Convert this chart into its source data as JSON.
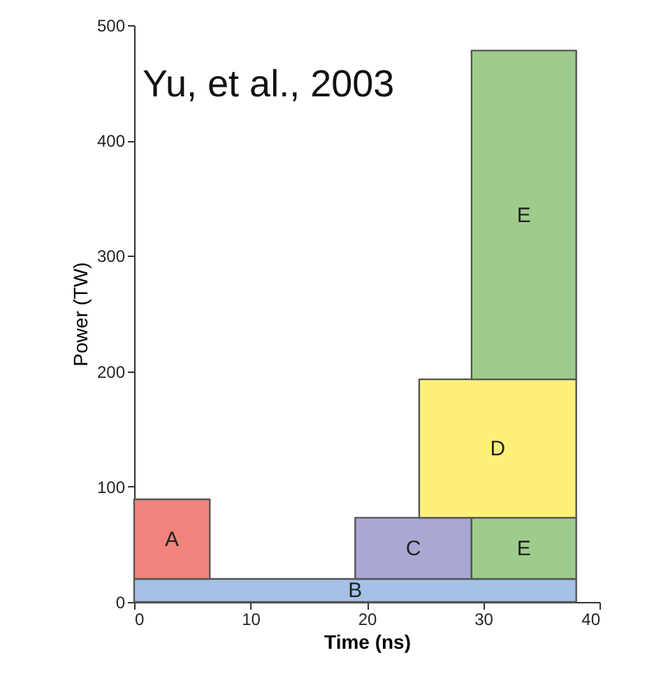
{
  "chart_data": {
    "type": "area",
    "stacked": true,
    "xlabel": "Time (ns)",
    "ylabel": "Power (TW)",
    "annotations": [
      "Yu, et al., 2003"
    ],
    "x": [
      0,
      6.5,
      6.5,
      19,
      19,
      24.5,
      24.5,
      29,
      29,
      38
    ],
    "series": [
      {
        "name": "B",
        "color": "#a5c2e6",
        "values": [
          20,
          20,
          20,
          20,
          20,
          20,
          20,
          20,
          20,
          20
        ]
      },
      {
        "name": "A",
        "color": "#f0847c",
        "values": [
          69,
          69,
          null,
          null,
          null,
          null,
          null,
          null,
          null,
          null
        ]
      },
      {
        "name": "C",
        "color": "#aaa7d4",
        "values": [
          null,
          null,
          null,
          null,
          53,
          53,
          53,
          53,
          null,
          null
        ]
      },
      {
        "name": "E",
        "color": "#9fcc8c",
        "values": [
          null,
          null,
          null,
          null,
          null,
          null,
          null,
          null,
          53,
          53
        ]
      },
      {
        "name": "D",
        "color": "#fdf07a",
        "values": [
          null,
          null,
          null,
          null,
          null,
          null,
          120,
          120,
          120,
          120
        ]
      },
      {
        "name": "E",
        "color": "#9fcc8c",
        "values": [
          null,
          null,
          null,
          null,
          null,
          null,
          null,
          null,
          285,
          285
        ]
      }
    ],
    "xlim": [
      0,
      40
    ],
    "xticks": [
      0,
      10,
      20,
      30,
      40
    ],
    "ylim": [
      0,
      500
    ],
    "yticks": [
      0,
      100,
      200,
      300,
      400,
      500
    ],
    "grid": false
  }
}
